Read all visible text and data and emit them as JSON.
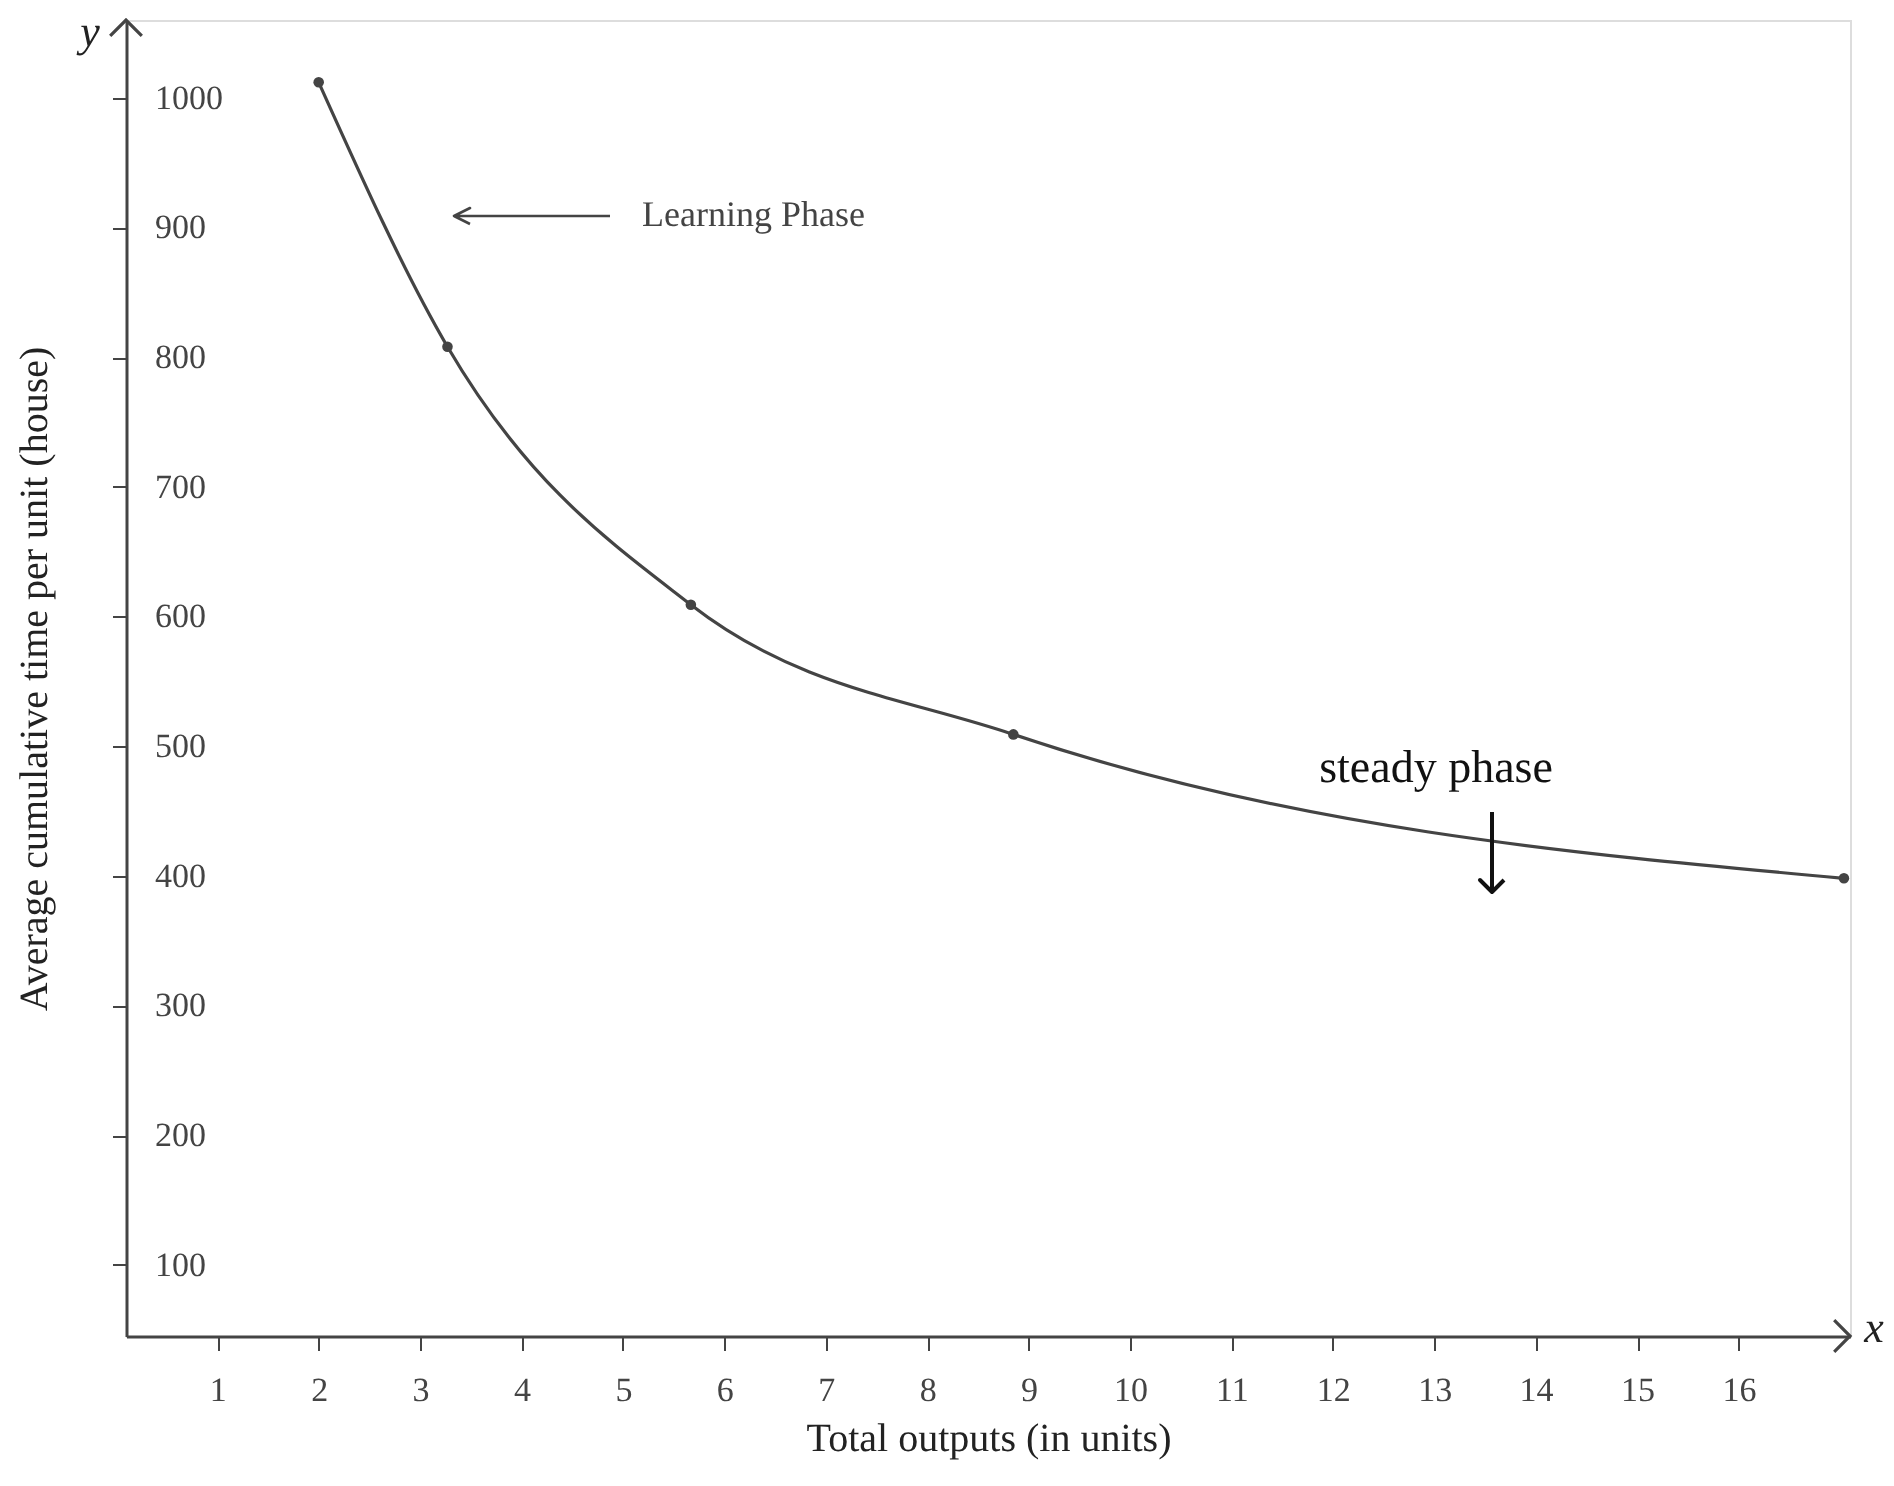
{
  "chart_data": {
    "type": "line",
    "xlabel": "Total outputs (in units)",
    "ylabel": "Average cumulative time per unit (house)",
    "x": [
      2,
      3.27,
      5.67,
      8.85,
      17.04
    ],
    "series": [
      {
        "color": "#444444",
        "values": [
          1012,
          808,
          609,
          509,
          398
        ]
      }
    ],
    "marker": "circle",
    "line_style": "solid",
    "xlim": [
      0.1,
      17.1
    ],
    "ylim": [
      45,
      1060
    ],
    "xticks": [
      1,
      2,
      3,
      4,
      5,
      6,
      7,
      8,
      9,
      10,
      11,
      12,
      13,
      14,
      15,
      16
    ],
    "yticks": [
      100,
      200,
      300,
      400,
      500,
      600,
      700,
      800,
      900,
      {
        "value": 1000,
        "label": "1000"
      }
    ],
    "grid": false,
    "annotations": [
      "Learning Phase",
      "steady phase",
      "y",
      "x"
    ]
  }
}
